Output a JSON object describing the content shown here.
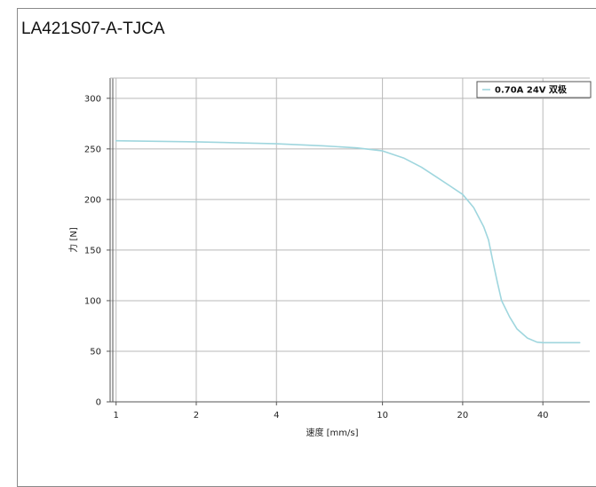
{
  "chart_data": {
    "type": "line",
    "title": "LA421S07-A-TJCA",
    "xlabel": "速度 [mm/s]",
    "ylabel": "力 [N]",
    "x_scale": "log",
    "xlim": [
      0.95,
      60
    ],
    "ylim": [
      0,
      320
    ],
    "x_ticks": [
      1,
      2,
      4,
      10,
      20,
      40
    ],
    "y_ticks": [
      0,
      50,
      100,
      150,
      200,
      250,
      300
    ],
    "grid": true,
    "legend_position": "top-right",
    "colors": {
      "series": "#9fd6de",
      "grid": "#b9b9b9",
      "axis": "#555555"
    },
    "series": [
      {
        "name": "0.70A 24V 双极",
        "x": [
          1,
          2,
          4,
          6,
          8,
          10,
          12,
          14,
          16,
          18,
          20,
          22,
          24,
          25,
          26,
          27,
          28,
          30,
          32,
          35,
          38,
          40,
          45,
          50,
          55
        ],
        "y": [
          258,
          257,
          255,
          253,
          251,
          248,
          241,
          232,
          222,
          213,
          205,
          192,
          173,
          160,
          138,
          118,
          100,
          84,
          72,
          63,
          59,
          58.5,
          58.5,
          58.5,
          58.5
        ]
      }
    ]
  }
}
